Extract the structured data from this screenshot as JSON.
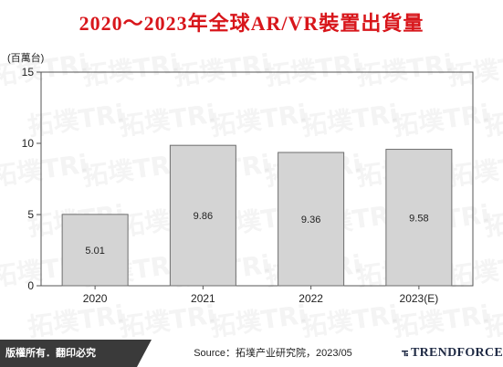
{
  "title": "2020～2023年全球AR/VR裝置出貨量",
  "watermark_text": "拓墣TRi",
  "footer": {
    "copyright": "版權所有．翻印必究",
    "source": "Source：拓墣产业研究院，2023/05",
    "logo": "TRENDFORCE"
  },
  "chart_data": {
    "type": "bar",
    "categories": [
      "2020",
      "2021",
      "2022",
      "2023(E)"
    ],
    "values": [
      5.01,
      9.86,
      9.36,
      9.58
    ],
    "value_labels": [
      "5.01",
      "9.86",
      "9.36",
      "9.58"
    ],
    "unit_label": "(百萬台)",
    "ylim": [
      0,
      15
    ],
    "yticks": [
      0,
      5,
      10,
      15
    ],
    "bar_color": "#d4d4d4",
    "bar_border": "#6e6e6e",
    "grid": false,
    "legend": "none"
  },
  "colors": {
    "title": "#d8161b",
    "footer_dark": "#3a3a3a"
  }
}
